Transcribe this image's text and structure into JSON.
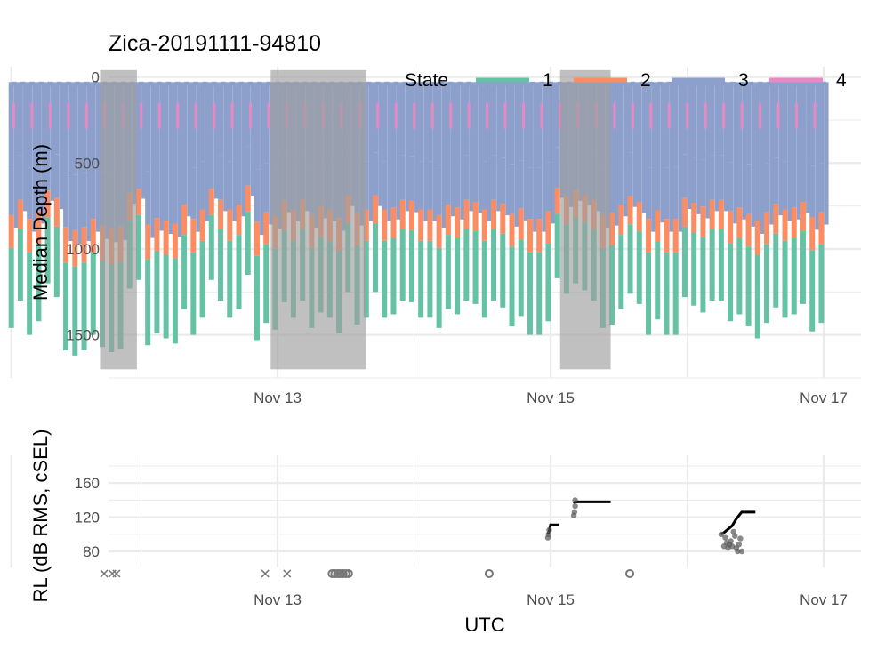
{
  "title": "Zica-20191111-94810",
  "colors": {
    "state_1": "#66c2a5",
    "state_2": "#fc8d62",
    "state_3": "#8da0cb",
    "state_4": "#e78ac3",
    "shade": "#9e9e9e",
    "grid": "#ebebeb",
    "text": "#000000",
    "tick_text": "#4d4d4d"
  },
  "legend": {
    "title": "State",
    "entries": [
      "1",
      "2",
      "3",
      "4"
    ]
  },
  "chart_data": [
    {
      "type": "bar",
      "panel": "dive-depth",
      "xlabel": "",
      "ylabel": "Median Depth (m)",
      "x_unit": "days since Nov 12 00:00 UTC",
      "xlim": [
        -1.0,
        5.3
      ],
      "ylim": [
        1750,
        -60
      ],
      "y_reversed": true,
      "x_ticks": [
        {
          "value": 1,
          "label": "Nov 13"
        },
        {
          "value": 3,
          "label": "Nov 15"
        },
        {
          "value": 5,
          "label": "Nov 17"
        }
      ],
      "y_ticks": [
        0,
        500,
        1000,
        1500
      ],
      "shaded_intervals_days": [
        [
          -0.3,
          -0.03
        ],
        [
          0.95,
          1.65
        ],
        [
          3.07,
          3.44
        ]
      ],
      "shade_depth_range": [
        0,
        1700
      ],
      "dive_max_depths_m": [
        1460,
        1300,
        1500,
        1420,
        1200,
        1280,
        1590,
        1620,
        1590,
        1500,
        1570,
        1600,
        1580,
        1230,
        1180,
        1560,
        1490,
        1520,
        1550,
        1350,
        1500,
        1400,
        1180,
        1300,
        1400,
        1350,
        1150,
        1530,
        1430,
        1470,
        1310,
        1400,
        1300,
        1460,
        1370,
        1400,
        1490,
        1250,
        1440,
        1400,
        1250,
        1400,
        1380,
        1300,
        1310,
        1400,
        1400,
        1460,
        1350,
        1380,
        1300,
        1320,
        1400,
        1300,
        1340,
        1450,
        1390,
        1500,
        1500,
        1420,
        1170,
        1260,
        1200,
        1240,
        1300,
        1460,
        1440,
        1350,
        1260,
        1320,
        1500,
        1410,
        1500,
        1500,
        1280,
        1330,
        1370,
        1300,
        1300,
        1420,
        1380,
        1450,
        1520,
        1430,
        1340,
        1400,
        1380,
        1320,
        1480,
        1430
      ],
      "state_4_near_surface": true
    },
    {
      "type": "scatter",
      "panel": "received-level",
      "xlabel": "UTC",
      "ylabel": "RL (dB RMS, cSEL)",
      "xlim": [
        -1.0,
        5.3
      ],
      "ylim": [
        45,
        185
      ],
      "x_ticks": [
        {
          "value": 1,
          "label": "Nov 13"
        },
        {
          "value": 3,
          "label": "Nov 15"
        },
        {
          "value": 5,
          "label": "Nov 17"
        }
      ],
      "y_ticks": [
        80,
        120,
        160
      ],
      "rms_points": [
        {
          "x": 2.98,
          "y": 96
        },
        {
          "x": 2.985,
          "y": 100
        },
        {
          "x": 2.99,
          "y": 105
        },
        {
          "x": 3.17,
          "y": 122
        },
        {
          "x": 3.175,
          "y": 126
        },
        {
          "x": 3.18,
          "y": 133
        },
        {
          "x": 3.18,
          "y": 140
        },
        {
          "x": 4.25,
          "y": 100
        },
        {
          "x": 4.27,
          "y": 86
        },
        {
          "x": 4.28,
          "y": 96
        },
        {
          "x": 4.29,
          "y": 90
        },
        {
          "x": 4.3,
          "y": 84
        },
        {
          "x": 4.31,
          "y": 88
        },
        {
          "x": 4.32,
          "y": 92
        },
        {
          "x": 4.33,
          "y": 86
        },
        {
          "x": 4.34,
          "y": 103
        },
        {
          "x": 4.35,
          "y": 98
        },
        {
          "x": 4.36,
          "y": 84
        },
        {
          "x": 4.37,
          "y": 80
        },
        {
          "x": 4.38,
          "y": 88
        },
        {
          "x": 4.39,
          "y": 95
        },
        {
          "x": 4.4,
          "y": 80
        }
      ],
      "csel_steps": [
        {
          "points": [
            [
              2.98,
              100
            ],
            [
              2.99,
              104
            ],
            [
              3.0,
              111
            ],
            [
              3.06,
              111
            ]
          ]
        },
        {
          "points": [
            [
              3.17,
              136
            ],
            [
              3.18,
              138
            ],
            [
              3.44,
              138
            ]
          ]
        },
        {
          "points": [
            [
              4.25,
              100
            ],
            [
              4.27,
              102
            ],
            [
              4.3,
              106
            ],
            [
              4.33,
              110
            ],
            [
              4.36,
              118
            ],
            [
              4.38,
              122
            ],
            [
              4.4,
              126
            ],
            [
              4.5,
              126
            ]
          ]
        }
      ],
      "cross_markers": [
        {
          "x": -0.27,
          "y": 54
        },
        {
          "x": -0.21,
          "y": 54
        },
        {
          "x": -0.18,
          "y": 54
        },
        {
          "x": 0.91,
          "y": 54
        },
        {
          "x": 1.07,
          "y": 54
        }
      ],
      "open_circle_markers": [
        {
          "x": 1.4,
          "y": 54
        },
        {
          "x": 1.42,
          "y": 54
        },
        {
          "x": 1.44,
          "y": 54
        },
        {
          "x": 1.46,
          "y": 54
        },
        {
          "x": 1.48,
          "y": 54
        },
        {
          "x": 1.5,
          "y": 54
        },
        {
          "x": 1.52,
          "y": 54
        },
        {
          "x": 2.55,
          "y": 54
        },
        {
          "x": 3.58,
          "y": 54
        }
      ]
    }
  ]
}
